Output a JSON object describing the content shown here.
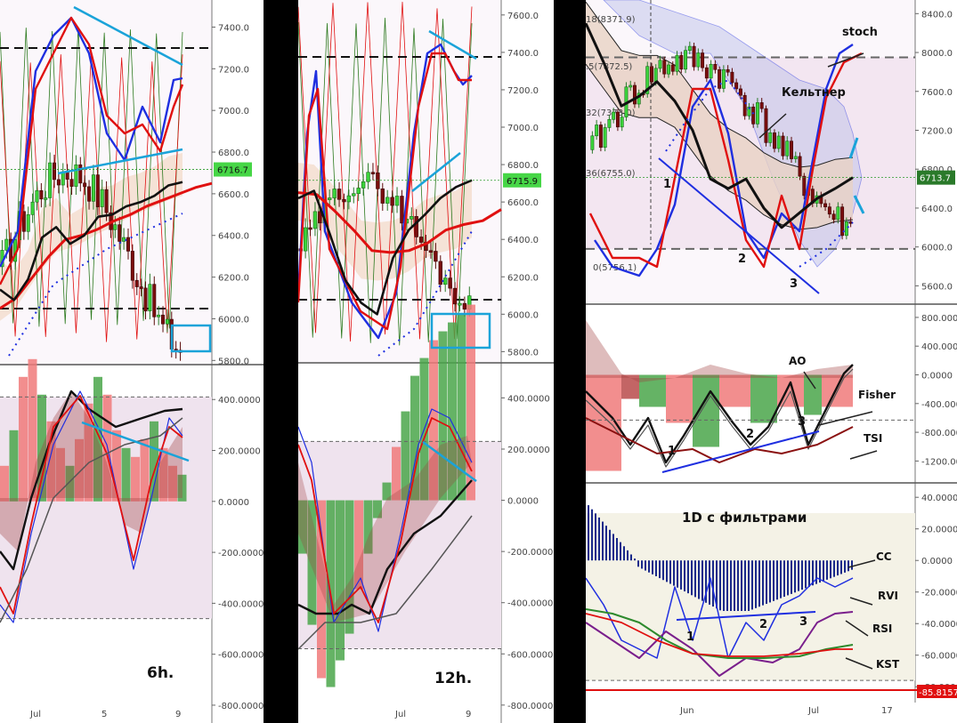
{
  "colors": {
    "up": "#3bd43b",
    "down": "#7a0d0d",
    "red": "#e01010",
    "blue": "#1f2fe0",
    "cyan": "#1aa3d9",
    "black": "#111111",
    "green_line": "#2d7a1f",
    "purple": "#7a1f8c",
    "price_bg": "#46d646",
    "zone": "#efe3ee",
    "zone3": "#f4f2e6"
  },
  "panel_6h": {
    "timeframe": "6h.",
    "price": {
      "y_ticks": [
        "7400.0",
        "7200.0",
        "7000.0",
        "6800.0",
        "6600.0",
        "6400.0",
        "6200.0",
        "6000.0",
        "5800.0"
      ],
      "current": "6716.7",
      "ylim": [
        5780,
        7530
      ]
    },
    "osc": {
      "y_ticks": [
        "400.0000",
        "200.0000",
        "0.0000",
        "-200.0000",
        "-400.0000",
        "-600.0000",
        "-800.0000"
      ],
      "ylim": [
        -870,
        530
      ]
    },
    "x_ticks": [
      "Jul",
      "5",
      "9"
    ]
  },
  "panel_12h": {
    "timeframe": "12h.",
    "price": {
      "y_ticks": [
        "7600.0",
        "7400.0",
        "7200.0",
        "7000.0",
        "6800.0",
        "6600.0",
        "6400.0",
        "6200.0",
        "6000.0",
        "5800.0"
      ],
      "current": "6715.9",
      "ylim": [
        5740,
        7680
      ]
    },
    "osc": {
      "y_ticks": [
        "400.0000",
        "200.0000",
        "0.0000",
        "-200.0000",
        "-400.0000",
        "-600.0000",
        "-800.0000"
      ],
      "ylim": [
        -870,
        530
      ]
    },
    "x_ticks": [
      "Jul",
      "9"
    ]
  },
  "panel_1d": {
    "price": {
      "y_ticks": [
        "8400.0",
        "8000.0",
        "7600.0",
        "7200.0",
        "6800.0",
        "6400.0",
        "6000.0",
        "5600.0"
      ],
      "current": "6713.7",
      "ylim": [
        5430,
        8540
      ],
      "fib_labels": [
        "18(8371.9)",
        ".5(7872.5)",
        "32(7373.0)",
        "36(6755.0)",
        "0(5756.1)"
      ],
      "annotations": {
        "stoch": "stoch",
        "keltner": "Кельтнер",
        "n1": "1",
        "n2": "2",
        "n3": "3"
      }
    },
    "osc1": {
      "y_ticks": [
        "800.0000",
        "400.0000",
        "0.0000",
        "-400.0000",
        "-800.0000",
        "-1200.0000"
      ],
      "ylim": [
        -1480,
        960
      ],
      "annotations": {
        "ao": "AO",
        "fisher": "Fisher",
        "tsi": "TSI",
        "n1": "1",
        "n2": "2",
        "n3": "3"
      }
    },
    "osc2": {
      "title": "1D  с фильтрами",
      "y_ticks": [
        "40.0000",
        "20.0000",
        "0.0000",
        "-20.0000",
        "-40.0000",
        "-60.0000",
        "-80.0000"
      ],
      "current": "-85.8157",
      "ylim": [
        -90,
        48
      ],
      "annotations": {
        "cc": "CC",
        "rvi": "RVI",
        "rsi": "RSI",
        "kst": "KST",
        "n1": "1",
        "n2": "2",
        "n3": "3"
      }
    },
    "x_ticks": [
      "Jun",
      "Jul",
      "17"
    ]
  },
  "chart_data": [
    {
      "type": "line",
      "title": "6h.",
      "xlabel": "",
      "ylabel": "",
      "x_ticks": [
        "Jul",
        "5",
        "9"
      ],
      "ylim": [
        5780,
        7530
      ],
      "series": [
        {
          "values": [
            6200,
            6150,
            6250,
            6450,
            6500,
            6420,
            6460,
            6550,
            6560,
            6600,
            6620,
            6650,
            6700,
            6716
          ]
        },
        {
          "values": [
            6050,
            6100,
            6200,
            6300,
            6380,
            6400,
            6430,
            6470,
            6500,
            6540,
            6570,
            6600,
            6630,
            6650
          ]
        }
      ]
    },
    {
      "type": "line",
      "title": "12h.",
      "xlabel": "",
      "ylabel": "",
      "x_ticks": [
        "Jul",
        "9"
      ],
      "ylim": [
        5740,
        7680
      ],
      "series": [
        {
          "values": [
            6620,
            6660,
            6430,
            6180,
            6060,
            6000,
            6300,
            6450,
            6530,
            6620,
            6680,
            6716
          ]
        },
        {
          "values": [
            6650,
            6640,
            6550,
            6450,
            6340,
            6330,
            6340,
            6380,
            6450,
            6480,
            6500,
            6560
          ]
        }
      ]
    },
    {
      "type": "line",
      "title": "",
      "xlabel": "",
      "ylabel": "",
      "x_ticks": [
        "Jun",
        "Jul",
        "17"
      ],
      "ylim": [
        5430,
        8540
      ],
      "series": [
        {
          "values": [
            8300,
            7900,
            7450,
            7550,
            7700,
            7500,
            7200,
            6700,
            6600,
            6700,
            6400,
            6200,
            6350,
            6500,
            6600,
            6714
          ]
        },
        {
          "values": [
            8200,
            7950,
            7700,
            7650,
            7650,
            7550,
            7300,
            7050,
            6900,
            6800,
            6650,
            6550,
            6500,
            6520,
            6580,
            6600
          ]
        }
      ]
    }
  ]
}
